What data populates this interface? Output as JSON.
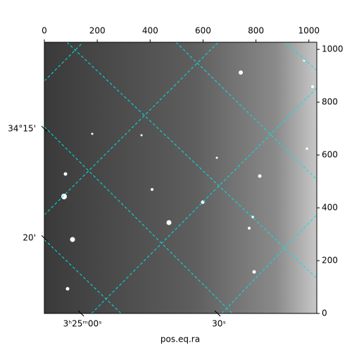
{
  "chart_data": {
    "type": "image",
    "xlabel": "pos.eq.ra",
    "xlim": [
      0,
      1030
    ],
    "xticks": [
      0,
      200,
      400,
      600,
      800,
      1000
    ],
    "ylim": [
      0,
      1027
    ],
    "yticks": [
      0,
      200,
      400,
      600,
      800,
      1000
    ],
    "wcs_xticks": [
      {
        "value": 144,
        "label": "3ʰ25ᵐ00ˢ"
      },
      {
        "value": 660,
        "label": "30ˢ"
      }
    ],
    "wcs_yticks": [
      {
        "value": 699,
        "label": "34°15'"
      },
      {
        "value": 285,
        "label": "20'"
      }
    ],
    "grid_color": "#00e5e5"
  }
}
